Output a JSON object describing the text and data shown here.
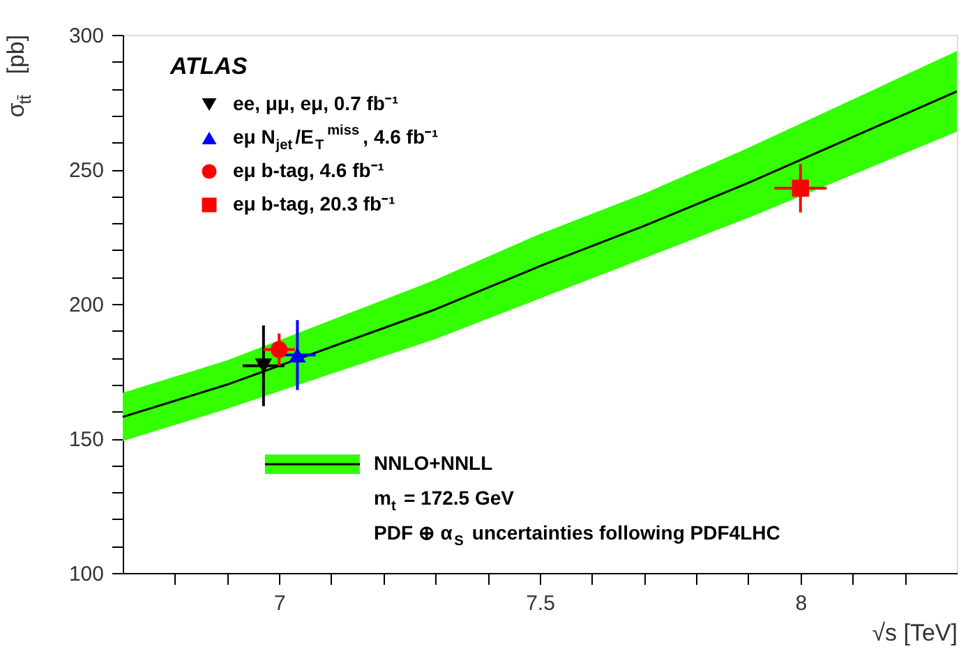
{
  "chart_data": {
    "type": "scatter",
    "xlabel": "√s [TeV]",
    "ylabel": "σ$_{tt̄}$ [pb]",
    "xlim": [
      6.7,
      8.3
    ],
    "ylim": [
      100,
      300
    ],
    "xticks": [
      {
        "value": 6.8,
        "label": null
      },
      {
        "value": 6.9,
        "label": null
      },
      7,
      {
        "value": 7.1,
        "label": null
      },
      {
        "value": 7.2,
        "label": null
      },
      {
        "value": 7.3,
        "label": null
      },
      {
        "value": 7.4,
        "label": null
      },
      7.5,
      {
        "value": 7.6,
        "label": null
      },
      {
        "value": 7.7,
        "label": null
      },
      {
        "value": 7.8,
        "label": null
      },
      {
        "value": 7.9,
        "label": null
      },
      8,
      {
        "value": 8.1,
        "label": null
      },
      {
        "value": 8.2,
        "label": null
      }
    ],
    "yticks": [
      100,
      {
        "value": 110,
        "label": null
      },
      {
        "value": 120,
        "label": null
      },
      {
        "value": 130,
        "label": null
      },
      {
        "value": 140,
        "label": null
      },
      150,
      {
        "value": 160,
        "label": null
      },
      {
        "value": 170,
        "label": null
      },
      {
        "value": 180,
        "label": null
      },
      {
        "value": 190,
        "label": null
      },
      200,
      {
        "value": 210,
        "label": null
      },
      {
        "value": 220,
        "label": null
      },
      {
        "value": 230,
        "label": null
      },
      {
        "value": 240,
        "label": null
      },
      250,
      {
        "value": 260,
        "label": null
      },
      {
        "value": 270,
        "label": null
      },
      {
        "value": 280,
        "label": null
      },
      {
        "value": 290,
        "label": null
      },
      300
    ],
    "grid": false,
    "legend": "top left",
    "annotations": [
      "ATLAS",
      "m$_{t}$ = 172.5 GeV",
      "PDF ⊕ α$_{S}$ uncertainties following PDF4LHC"
    ],
    "series": [
      {
        "name": "NNLO+NNLL",
        "type": "line",
        "color": "#000000",
        "x": [
          6.7,
          6.9,
          7.1,
          7.3,
          7.5,
          7.7,
          7.9,
          8.1,
          8.3
        ],
        "values": [
          158,
          170,
          184,
          198,
          214,
          229,
          245,
          262,
          279
        ],
        "lower": [
          149,
          161,
          174,
          187,
          202,
          217,
          232,
          248,
          264
        ],
        "upper": [
          167,
          179,
          194,
          209,
          226,
          241,
          258,
          276,
          294
        ]
      },
      {
        "name": "ee, μμ, eμ, 0.7 fb⁻¹",
        "marker": "triangle-down",
        "color": "#000000",
        "x": [
          6.97
        ],
        "values": [
          177
        ],
        "errors": [
          15
        ],
        "xerrors": [
          0.04
        ]
      },
      {
        "name": "eμ N$_{jet}$/E$_{T}$$^{miss}$, 4.6 fb⁻¹",
        "marker": "triangle",
        "color": "#0000ff",
        "x": [
          7.035
        ],
        "values": [
          181
        ],
        "errors": [
          13
        ],
        "xerrors": [
          0.035
        ]
      },
      {
        "name": "eμ b-tag, 4.6 fb⁻¹",
        "marker": "circle",
        "color": "#ff0000",
        "x": [
          7.0
        ],
        "values": [
          183
        ],
        "errors": [
          6
        ],
        "xerrors": [
          0.03
        ]
      },
      {
        "name": "eμ b-tag, 20.3 fb⁻¹",
        "marker": "square",
        "color": "#ff0000",
        "x": [
          8.0
        ],
        "values": [
          243
        ],
        "errors": [
          9
        ],
        "xerrors": [
          0.05
        ]
      }
    ]
  }
}
